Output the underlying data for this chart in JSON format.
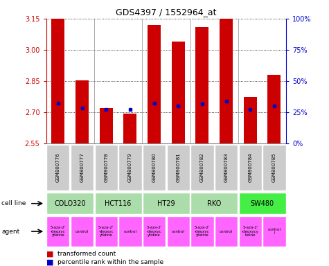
{
  "title": "GDS4397 / 1552964_at",
  "samples": [
    "GSM800776",
    "GSM800777",
    "GSM800778",
    "GSM800779",
    "GSM800780",
    "GSM800781",
    "GSM800782",
    "GSM800783",
    "GSM800784",
    "GSM800785"
  ],
  "red_values": [
    3.15,
    2.855,
    2.72,
    2.695,
    3.12,
    3.04,
    3.11,
    3.15,
    2.775,
    2.88
  ],
  "blue_values": [
    2.745,
    2.72,
    2.715,
    2.715,
    2.745,
    2.73,
    2.74,
    2.755,
    2.715,
    2.73
  ],
  "ylim_left": [
    2.55,
    3.15
  ],
  "ylim_right": [
    0,
    100
  ],
  "yticks_left": [
    2.55,
    2.7,
    2.85,
    3.0,
    3.15
  ],
  "yticks_right": [
    0,
    25,
    50,
    75,
    100
  ],
  "ytick_labels_right": [
    "0%",
    "25%",
    "50%",
    "75%",
    "100%"
  ],
  "cell_lines": [
    {
      "name": "COLO320",
      "span": [
        0,
        2
      ],
      "color": "#aaddaa"
    },
    {
      "name": "HCT116",
      "span": [
        2,
        4
      ],
      "color": "#aaddaa"
    },
    {
      "name": "HT29",
      "span": [
        4,
        6
      ],
      "color": "#aaddaa"
    },
    {
      "name": "RKO",
      "span": [
        6,
        8
      ],
      "color": "#aaddaa"
    },
    {
      "name": "SW480",
      "span": [
        8,
        10
      ],
      "color": "#44ee44"
    }
  ],
  "agent_texts": [
    "5-aza-2'\n-deoxyc\nytidine",
    "control",
    "5-aza-2'\n-deoxyc\nytidine",
    "control",
    "5-aza-2'\n-deoxyc\nytidine",
    "control",
    "5-aza-2'\n-deoxyc\nytidine",
    "control",
    "5-aza-2'\n-deoxycy\ntidine",
    "control\nl"
  ],
  "agent_color": "#ff66ff",
  "bar_color": "#cc0000",
  "dot_color": "#0000cc",
  "bar_width": 0.55,
  "tick_color_left": "#cc0000",
  "tick_color_right": "#0000cc",
  "sample_row_color": "#cccccc",
  "title_fontsize": 9
}
